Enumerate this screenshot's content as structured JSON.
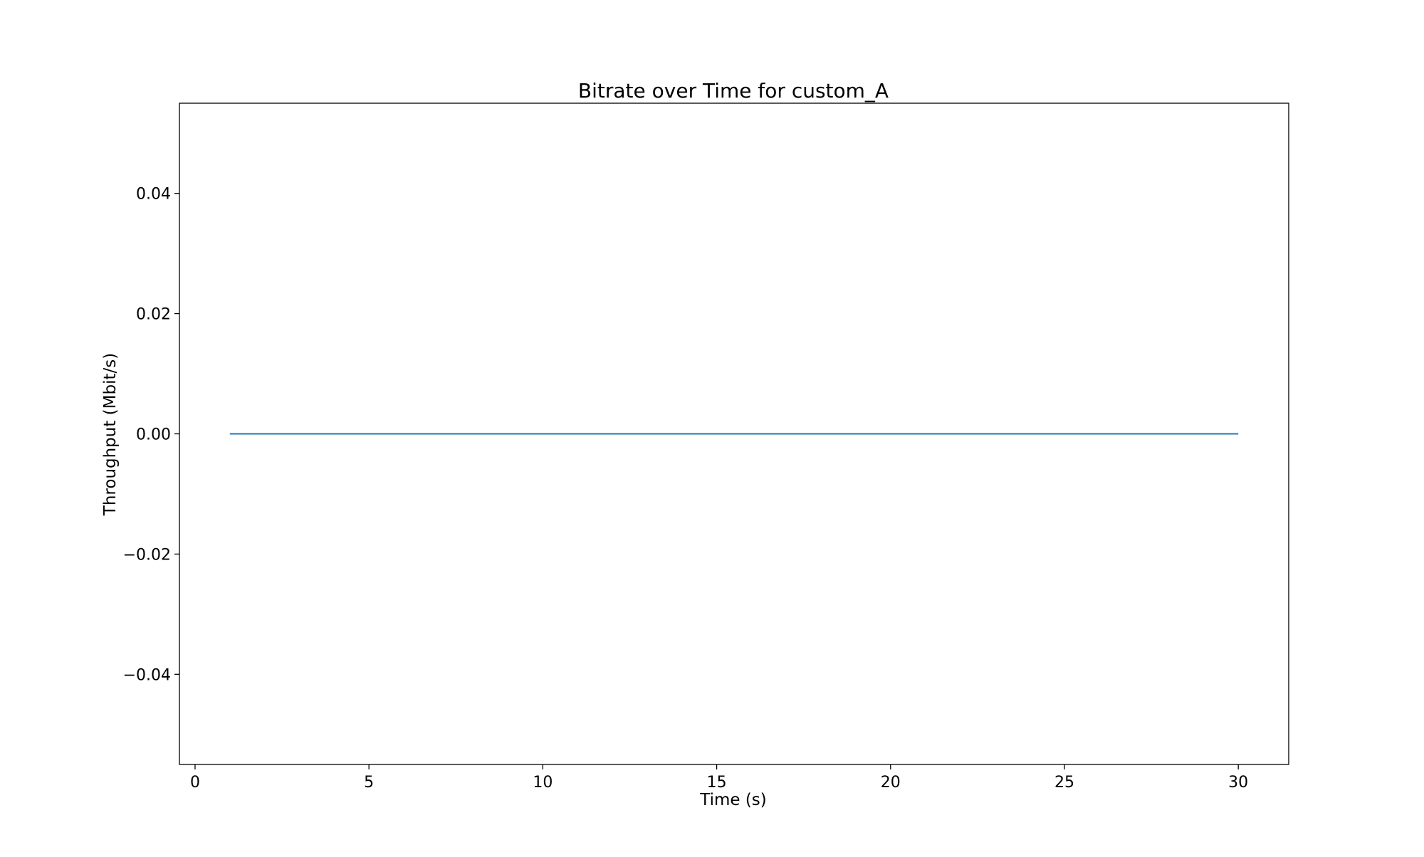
{
  "chart_data": {
    "type": "line",
    "title": "Bitrate over Time for custom_A",
    "xlabel": "Time (s)",
    "ylabel": "Throughput (Mbit/s)",
    "xlim": [
      -0.45,
      31.45
    ],
    "ylim": [
      -0.055,
      0.055
    ],
    "xticks": [
      0,
      5,
      10,
      15,
      20,
      25,
      30
    ],
    "xtick_labels": [
      "0",
      "5",
      "10",
      "15",
      "20",
      "25",
      "30"
    ],
    "yticks": [
      0.04,
      0.02,
      0.0,
      -0.02,
      -0.04
    ],
    "ytick_labels": [
      "0.04",
      "0.02",
      "0.00",
      "−0.02",
      "−0.04"
    ],
    "grid": false,
    "legend": "none",
    "series": [
      {
        "color": "#1f77b4",
        "x": [
          1,
          2,
          3,
          4,
          5,
          6,
          7,
          8,
          9,
          10,
          11,
          12,
          13,
          14,
          15,
          16,
          17,
          18,
          19,
          20,
          21,
          22,
          23,
          24,
          25,
          26,
          27,
          28,
          29,
          30
        ],
        "y": [
          0,
          0,
          0,
          0,
          0,
          0,
          0,
          0,
          0,
          0,
          0,
          0,
          0,
          0,
          0,
          0,
          0,
          0,
          0,
          0,
          0,
          0,
          0,
          0,
          0,
          0,
          0,
          0,
          0,
          0
        ]
      }
    ]
  }
}
